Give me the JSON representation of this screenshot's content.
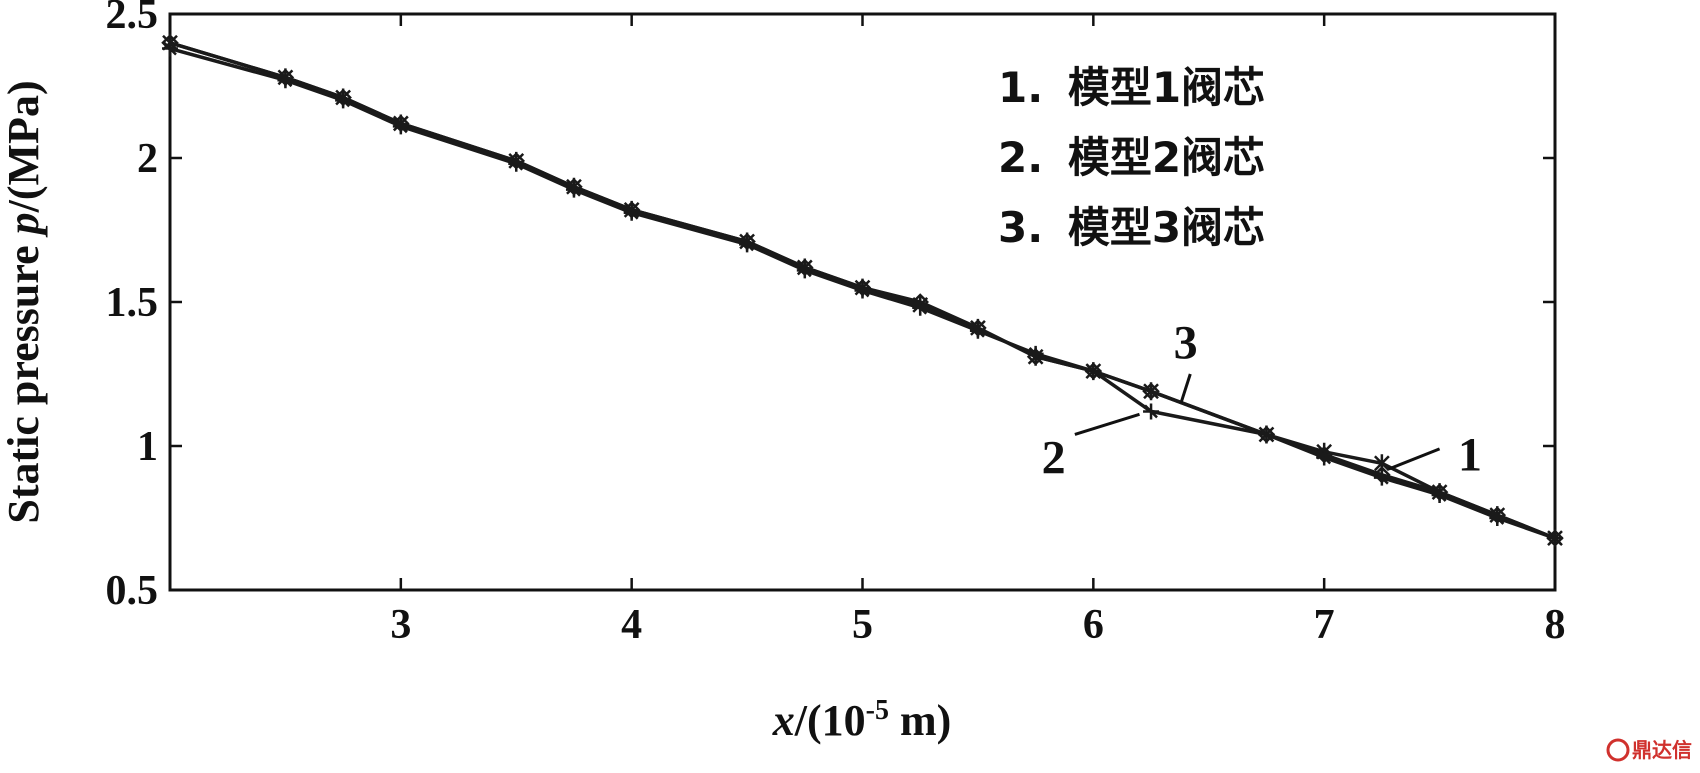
{
  "chart_data": {
    "type": "line",
    "xlabel_italic": "x",
    "xlabel_rest": "/(10",
    "xlabel_exp": "-5",
    "xlabel_unit": " m)",
    "ylabel_main": "Static pressure ",
    "ylabel_italic": "p",
    "ylabel_unit": "/(MPa)",
    "xlim": [
      2,
      8
    ],
    "ylim": [
      0.5,
      2.5
    ],
    "x_ticks": [
      3,
      4,
      5,
      6,
      7,
      8
    ],
    "x_tick_labels": [
      "3",
      "4",
      "5",
      "6",
      "7",
      "8"
    ],
    "y_ticks": [
      0.5,
      1,
      1.5,
      2,
      2.5
    ],
    "y_tick_labels": [
      "0.5",
      "1",
      "1.5",
      "2",
      "2.5"
    ],
    "legend": [
      {
        "num": "1.",
        "text": "模型1阀芯"
      },
      {
        "num": "2.",
        "text": "模型2阀芯"
      },
      {
        "num": "3.",
        "text": "模型3阀芯"
      }
    ],
    "legend_position": "top-right",
    "series": [
      {
        "name": "1",
        "x": [
          2.0,
          2.5,
          2.75,
          3.0,
          3.5,
          3.75,
          4.0,
          4.5,
          4.75,
          5.0,
          5.25,
          5.5,
          5.75,
          6.0,
          6.25,
          6.75,
          7.0,
          7.25,
          7.5,
          7.75,
          8.0
        ],
        "y": [
          2.4,
          2.28,
          2.21,
          2.12,
          1.99,
          1.9,
          1.82,
          1.71,
          1.62,
          1.55,
          1.49,
          1.41,
          1.31,
          1.26,
          1.19,
          1.04,
          0.98,
          0.94,
          0.84,
          0.76,
          0.68
        ]
      },
      {
        "name": "2",
        "x": [
          2.0,
          2.5,
          2.75,
          3.0,
          3.5,
          3.75,
          4.0,
          4.5,
          4.75,
          5.0,
          5.25,
          5.5,
          5.75,
          6.0,
          6.25,
          6.75,
          7.0,
          7.25,
          7.5,
          7.75,
          8.0
        ],
        "y": [
          2.38,
          2.27,
          2.2,
          2.11,
          1.98,
          1.89,
          1.81,
          1.7,
          1.61,
          1.54,
          1.48,
          1.4,
          1.32,
          1.26,
          1.12,
          1.04,
          0.96,
          0.89,
          0.83,
          0.75,
          0.68
        ]
      },
      {
        "name": "3",
        "x": [
          2.0,
          2.5,
          2.75,
          3.0,
          3.5,
          3.75,
          4.0,
          4.5,
          4.75,
          5.0,
          5.25,
          5.5,
          5.75,
          6.0,
          6.25,
          6.75,
          7.0,
          7.25,
          7.5,
          7.75,
          8.0
        ],
        "y": [
          2.4,
          2.28,
          2.21,
          2.12,
          1.99,
          1.9,
          1.82,
          1.71,
          1.62,
          1.55,
          1.5,
          1.41,
          1.31,
          1.26,
          1.19,
          1.04,
          0.97,
          0.9,
          0.84,
          0.76,
          0.68
        ]
      }
    ],
    "callouts": [
      {
        "label": "3",
        "series": "3"
      },
      {
        "label": "2",
        "series": "2"
      },
      {
        "label": "1",
        "series": "1"
      }
    ]
  },
  "watermark": {
    "logo_icon": "dingdaxin-logo-icon",
    "text": "鼎达信",
    "color": "#d0312d"
  }
}
